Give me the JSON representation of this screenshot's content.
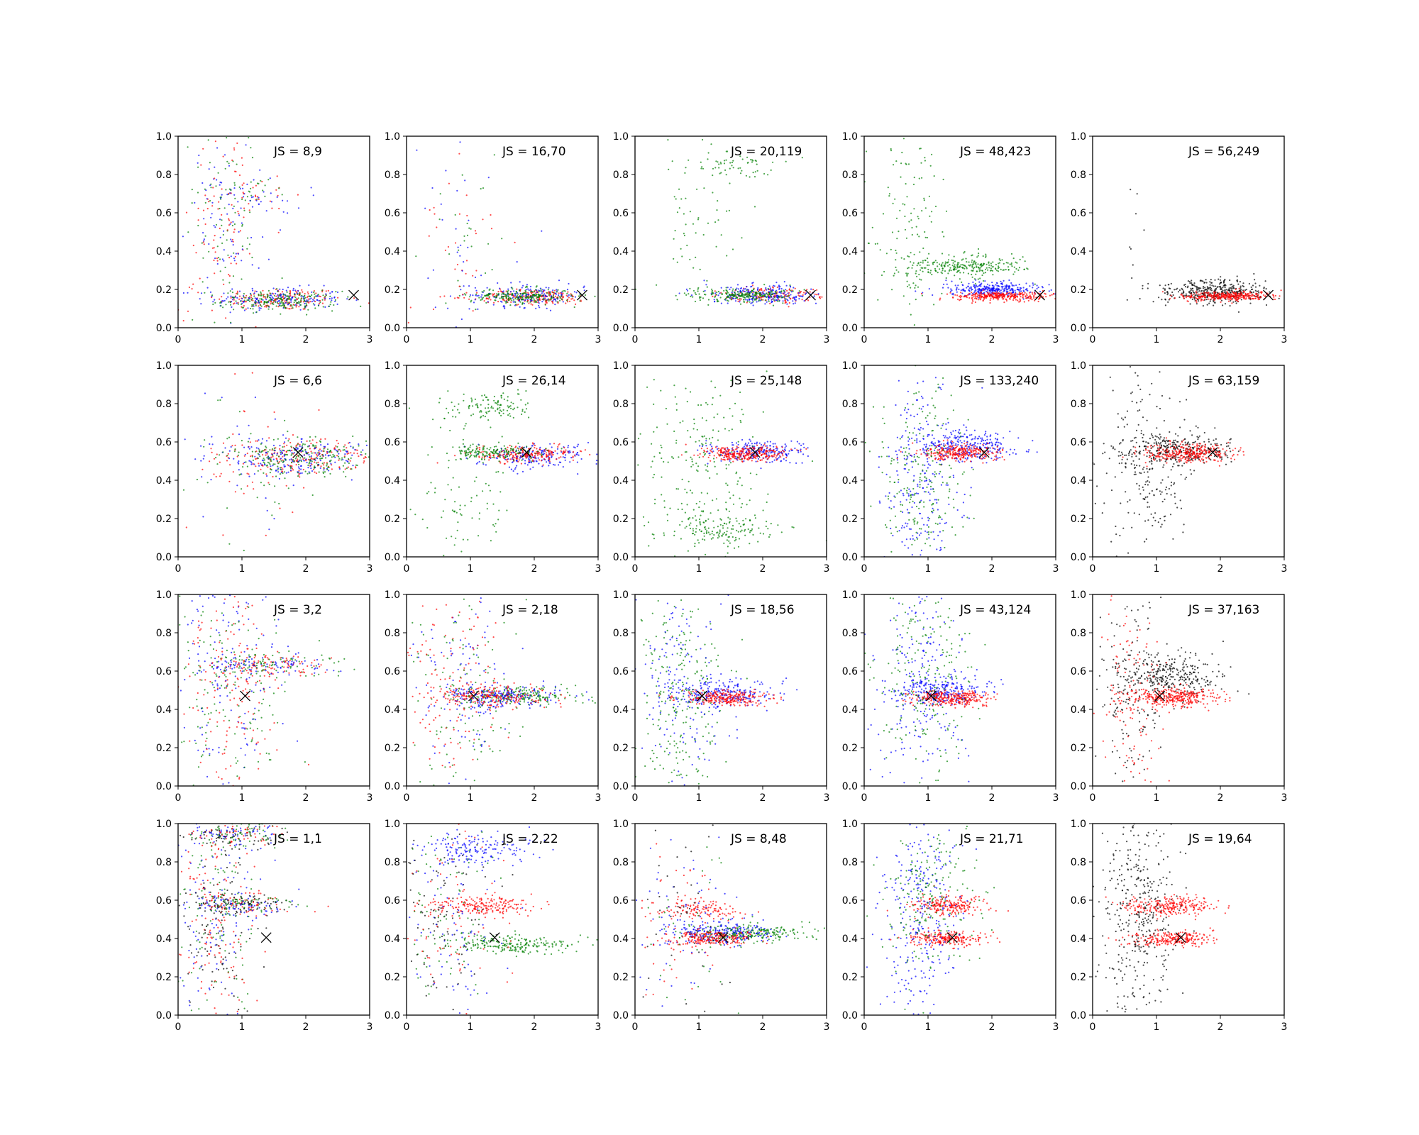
{
  "chart_data": {
    "type": "scatter",
    "layout": {
      "rows": 4,
      "cols": 5
    },
    "xlim": [
      0,
      3
    ],
    "ylim": [
      0,
      1
    ],
    "xticks": [
      "0",
      "1",
      "2",
      "3"
    ],
    "yticks": [
      "0.0",
      "0.2",
      "0.4",
      "0.6",
      "0.8",
      "1.0"
    ],
    "grid": false,
    "legend": "none",
    "colors": {
      "red": "#ff0000",
      "blue": "#0000ff",
      "green": "#008000",
      "black": "#000000"
    },
    "panels": [
      {
        "label": "JS = 8,9",
        "marker": {
          "x": 2.75,
          "y": 0.17
        },
        "colors": [
          "red",
          "blue",
          "green"
        ],
        "clusters": [
          {
            "color": "red",
            "cx": 1.6,
            "cy": 0.15,
            "sx": 0.5,
            "sy": 0.03,
            "n": 170
          },
          {
            "color": "blue",
            "cx": 1.6,
            "cy": 0.15,
            "sx": 0.5,
            "sy": 0.03,
            "n": 170
          },
          {
            "color": "green",
            "cx": 1.6,
            "cy": 0.14,
            "sx": 0.45,
            "sy": 0.025,
            "n": 200
          },
          {
            "color": "mix",
            "cx": 0.7,
            "cy": 0.55,
            "sx": 0.3,
            "sy": 0.28,
            "n": 250
          },
          {
            "color": "mix",
            "cx": 1.2,
            "cy": 0.7,
            "sx": 0.4,
            "sy": 0.05,
            "n": 90
          }
        ]
      },
      {
        "label": "JS = 16,70",
        "marker": {
          "x": 2.75,
          "y": 0.17
        },
        "colors": [
          "red",
          "blue",
          "green"
        ],
        "clusters": [
          {
            "color": "red",
            "cx": 2.0,
            "cy": 0.16,
            "sx": 0.45,
            "sy": 0.02,
            "n": 200
          },
          {
            "color": "blue",
            "cx": 1.9,
            "cy": 0.17,
            "sx": 0.45,
            "sy": 0.03,
            "n": 170
          },
          {
            "color": "green",
            "cx": 1.8,
            "cy": 0.165,
            "sx": 0.4,
            "sy": 0.02,
            "n": 220
          },
          {
            "color": "mix",
            "cx": 0.8,
            "cy": 0.45,
            "sx": 0.35,
            "sy": 0.25,
            "n": 90
          }
        ]
      },
      {
        "label": "JS = 20,119",
        "marker": {
          "x": 2.75,
          "y": 0.17
        },
        "colors": [
          "red",
          "blue",
          "green"
        ],
        "clusters": [
          {
            "color": "red",
            "cx": 2.2,
            "cy": 0.17,
            "sx": 0.4,
            "sy": 0.02,
            "n": 150
          },
          {
            "color": "blue",
            "cx": 2.0,
            "cy": 0.175,
            "sx": 0.45,
            "sy": 0.025,
            "n": 220
          },
          {
            "color": "green",
            "cx": 1.7,
            "cy": 0.17,
            "sx": 0.4,
            "sy": 0.02,
            "n": 220
          },
          {
            "color": "green",
            "cx": 1.6,
            "cy": 0.85,
            "sx": 0.35,
            "sy": 0.03,
            "n": 60
          },
          {
            "color": "green",
            "cx": 0.9,
            "cy": 0.5,
            "sx": 0.35,
            "sy": 0.25,
            "n": 60
          }
        ]
      },
      {
        "label": "JS = 48,423",
        "marker": {
          "x": 2.75,
          "y": 0.17
        },
        "colors": [
          "red",
          "blue",
          "green"
        ],
        "clusters": [
          {
            "color": "green",
            "cx": 1.6,
            "cy": 0.32,
            "sx": 0.45,
            "sy": 0.03,
            "n": 260
          },
          {
            "color": "blue",
            "cx": 2.0,
            "cy": 0.2,
            "sx": 0.35,
            "sy": 0.02,
            "n": 280
          },
          {
            "color": "red",
            "cx": 2.1,
            "cy": 0.165,
            "sx": 0.35,
            "sy": 0.012,
            "n": 300
          },
          {
            "color": "green",
            "cx": 0.7,
            "cy": 0.55,
            "sx": 0.3,
            "sy": 0.3,
            "n": 150
          }
        ]
      },
      {
        "label": "JS = 56,249",
        "marker": {
          "x": 2.75,
          "y": 0.17
        },
        "colors": [
          "black",
          "red"
        ],
        "clusters": [
          {
            "color": "black",
            "cx": 1.9,
            "cy": 0.19,
            "sx": 0.42,
            "sy": 0.03,
            "n": 380
          },
          {
            "color": "red",
            "cx": 2.1,
            "cy": 0.165,
            "sx": 0.35,
            "sy": 0.012,
            "n": 320
          },
          {
            "color": "black",
            "cx": 0.6,
            "cy": 0.6,
            "sx": 0.2,
            "sy": 0.25,
            "n": 8
          }
        ]
      },
      {
        "label": "JS = 6,6",
        "marker": {
          "x": 1.88,
          "y": 0.545
        },
        "colors": [
          "red",
          "blue",
          "green"
        ],
        "clusters": [
          {
            "color": "red",
            "cx": 1.9,
            "cy": 0.52,
            "sx": 0.55,
            "sy": 0.05,
            "n": 200
          },
          {
            "color": "blue",
            "cx": 1.9,
            "cy": 0.52,
            "sx": 0.55,
            "sy": 0.05,
            "n": 200
          },
          {
            "color": "green",
            "cx": 1.9,
            "cy": 0.52,
            "sx": 0.55,
            "sy": 0.05,
            "n": 220
          },
          {
            "color": "mix",
            "cx": 1.1,
            "cy": 0.45,
            "sx": 0.55,
            "sy": 0.22,
            "n": 100
          }
        ]
      },
      {
        "label": "JS = 26,14",
        "marker": {
          "x": 1.88,
          "y": 0.545
        },
        "colors": [
          "red",
          "blue",
          "green"
        ],
        "clusters": [
          {
            "color": "blue",
            "cx": 2.0,
            "cy": 0.53,
            "sx": 0.45,
            "sy": 0.03,
            "n": 200
          },
          {
            "color": "red",
            "cx": 1.9,
            "cy": 0.535,
            "sx": 0.4,
            "sy": 0.02,
            "n": 220
          },
          {
            "color": "green",
            "cx": 1.4,
            "cy": 0.545,
            "sx": 0.35,
            "sy": 0.02,
            "n": 160
          },
          {
            "color": "green",
            "cx": 1.3,
            "cy": 0.78,
            "sx": 0.4,
            "sy": 0.04,
            "n": 120
          },
          {
            "color": "green",
            "cx": 0.9,
            "cy": 0.3,
            "sx": 0.35,
            "sy": 0.2,
            "n": 90
          }
        ]
      },
      {
        "label": "JS = 25,148",
        "marker": {
          "x": 1.88,
          "y": 0.545
        },
        "colors": [
          "red",
          "blue",
          "green"
        ],
        "clusters": [
          {
            "color": "blue",
            "cx": 1.9,
            "cy": 0.55,
            "sx": 0.4,
            "sy": 0.03,
            "n": 220
          },
          {
            "color": "red",
            "cx": 1.7,
            "cy": 0.54,
            "sx": 0.35,
            "sy": 0.02,
            "n": 280
          },
          {
            "color": "green",
            "cx": 1.3,
            "cy": 0.15,
            "sx": 0.45,
            "sy": 0.04,
            "n": 150
          },
          {
            "color": "green",
            "cx": 1.1,
            "cy": 0.5,
            "sx": 0.5,
            "sy": 0.25,
            "n": 220
          }
        ]
      },
      {
        "label": "JS = 133,240",
        "marker": {
          "x": 1.88,
          "y": 0.545
        },
        "colors": [
          "red",
          "blue",
          "green"
        ],
        "clusters": [
          {
            "color": "blue",
            "cx": 1.6,
            "cy": 0.58,
            "sx": 0.35,
            "sy": 0.04,
            "n": 260
          },
          {
            "color": "red",
            "cx": 1.5,
            "cy": 0.545,
            "sx": 0.3,
            "sy": 0.02,
            "n": 280
          },
          {
            "color": "blue",
            "cx": 0.9,
            "cy": 0.4,
            "sx": 0.3,
            "sy": 0.25,
            "n": 250
          },
          {
            "color": "green",
            "cx": 0.9,
            "cy": 0.45,
            "sx": 0.35,
            "sy": 0.28,
            "n": 230
          }
        ]
      },
      {
        "label": "JS = 63,159",
        "marker": {
          "x": 1.88,
          "y": 0.545
        },
        "colors": [
          "black",
          "red"
        ],
        "clusters": [
          {
            "color": "black",
            "cx": 1.3,
            "cy": 0.56,
            "sx": 0.45,
            "sy": 0.04,
            "n": 300
          },
          {
            "color": "red",
            "cx": 1.5,
            "cy": 0.54,
            "sx": 0.35,
            "sy": 0.025,
            "n": 320
          },
          {
            "color": "black",
            "cx": 0.8,
            "cy": 0.45,
            "sx": 0.35,
            "sy": 0.25,
            "n": 220
          }
        ]
      },
      {
        "label": "JS = 3,2",
        "marker": {
          "x": 1.05,
          "y": 0.47
        },
        "colors": [
          "red",
          "blue",
          "green"
        ],
        "clusters": [
          {
            "color": "mix",
            "cx": 1.4,
            "cy": 0.63,
            "sx": 0.55,
            "sy": 0.03,
            "n": 280
          },
          {
            "color": "mix",
            "cx": 0.8,
            "cy": 0.5,
            "sx": 0.45,
            "sy": 0.3,
            "n": 450
          }
        ]
      },
      {
        "label": "JS = 2,18",
        "marker": {
          "x": 1.05,
          "y": 0.47
        },
        "colors": [
          "red",
          "blue",
          "green"
        ],
        "clusters": [
          {
            "color": "green",
            "cx": 1.8,
            "cy": 0.47,
            "sx": 0.45,
            "sy": 0.025,
            "n": 200
          },
          {
            "color": "blue",
            "cx": 1.5,
            "cy": 0.47,
            "sx": 0.45,
            "sy": 0.03,
            "n": 200
          },
          {
            "color": "red",
            "cx": 1.3,
            "cy": 0.47,
            "sx": 0.45,
            "sy": 0.03,
            "n": 200
          },
          {
            "color": "mix",
            "cx": 0.8,
            "cy": 0.5,
            "sx": 0.45,
            "sy": 0.28,
            "n": 360
          }
        ]
      },
      {
        "label": "JS = 18,56",
        "marker": {
          "x": 1.05,
          "y": 0.47
        },
        "colors": [
          "red",
          "blue",
          "green"
        ],
        "clusters": [
          {
            "color": "blue",
            "cx": 1.4,
            "cy": 0.48,
            "sx": 0.4,
            "sy": 0.035,
            "n": 240
          },
          {
            "color": "red",
            "cx": 1.4,
            "cy": 0.46,
            "sx": 0.35,
            "sy": 0.02,
            "n": 260
          },
          {
            "color": "green",
            "cx": 0.7,
            "cy": 0.45,
            "sx": 0.35,
            "sy": 0.28,
            "n": 260
          },
          {
            "color": "blue",
            "cx": 0.7,
            "cy": 0.5,
            "sx": 0.35,
            "sy": 0.28,
            "n": 160
          }
        ]
      },
      {
        "label": "JS = 43,124",
        "marker": {
          "x": 1.05,
          "y": 0.47
        },
        "colors": [
          "red",
          "blue",
          "green"
        ],
        "clusters": [
          {
            "color": "blue",
            "cx": 1.2,
            "cy": 0.5,
            "sx": 0.35,
            "sy": 0.04,
            "n": 240
          },
          {
            "color": "red",
            "cx": 1.4,
            "cy": 0.46,
            "sx": 0.3,
            "sy": 0.02,
            "n": 280
          },
          {
            "color": "blue",
            "cx": 0.9,
            "cy": 0.5,
            "sx": 0.35,
            "sy": 0.28,
            "n": 200
          },
          {
            "color": "green",
            "cx": 0.9,
            "cy": 0.55,
            "sx": 0.4,
            "sy": 0.28,
            "n": 220
          }
        ]
      },
      {
        "label": "JS = 37,163",
        "marker": {
          "x": 1.05,
          "y": 0.47
        },
        "colors": [
          "black",
          "red"
        ],
        "clusters": [
          {
            "color": "black",
            "cx": 1.2,
            "cy": 0.57,
            "sx": 0.4,
            "sy": 0.06,
            "n": 300
          },
          {
            "color": "red",
            "cx": 1.3,
            "cy": 0.46,
            "sx": 0.35,
            "sy": 0.025,
            "n": 340
          },
          {
            "color": "black",
            "cx": 0.6,
            "cy": 0.5,
            "sx": 0.25,
            "sy": 0.28,
            "n": 160
          },
          {
            "color": "red",
            "cx": 0.6,
            "cy": 0.45,
            "sx": 0.25,
            "sy": 0.28,
            "n": 120
          }
        ]
      },
      {
        "label": "JS = 1,1",
        "marker": {
          "x": 1.38,
          "y": 0.405
        },
        "colors": [
          "red",
          "blue",
          "green",
          "black"
        ],
        "clusters": [
          {
            "color": "mix4",
            "cx": 1.0,
            "cy": 0.58,
            "sx": 0.4,
            "sy": 0.03,
            "n": 300
          },
          {
            "color": "mix4",
            "cx": 0.9,
            "cy": 0.95,
            "sx": 0.45,
            "sy": 0.04,
            "n": 250
          },
          {
            "color": "mix4",
            "cx": 0.6,
            "cy": 0.5,
            "sx": 0.3,
            "sy": 0.3,
            "n": 450
          }
        ]
      },
      {
        "label": "JS = 2,22",
        "marker": {
          "x": 1.38,
          "y": 0.405
        },
        "colors": [
          "red",
          "blue",
          "green",
          "black"
        ],
        "clusters": [
          {
            "color": "green",
            "cx": 1.6,
            "cy": 0.37,
            "sx": 0.5,
            "sy": 0.025,
            "n": 220
          },
          {
            "color": "red",
            "cx": 1.2,
            "cy": 0.57,
            "sx": 0.4,
            "sy": 0.025,
            "n": 200
          },
          {
            "color": "blue",
            "cx": 1.1,
            "cy": 0.87,
            "sx": 0.45,
            "sy": 0.04,
            "n": 160
          },
          {
            "color": "mix4",
            "cx": 0.7,
            "cy": 0.5,
            "sx": 0.4,
            "sy": 0.28,
            "n": 350
          }
        ]
      },
      {
        "label": "JS = 8,48",
        "marker": {
          "x": 1.38,
          "y": 0.405
        },
        "colors": [
          "red",
          "blue",
          "green",
          "black"
        ],
        "clusters": [
          {
            "color": "green",
            "cx": 1.8,
            "cy": 0.43,
            "sx": 0.45,
            "sy": 0.025,
            "n": 240
          },
          {
            "color": "blue",
            "cx": 1.3,
            "cy": 0.43,
            "sx": 0.4,
            "sy": 0.03,
            "n": 220
          },
          {
            "color": "red",
            "cx": 1.2,
            "cy": 0.4,
            "sx": 0.35,
            "sy": 0.02,
            "n": 220
          },
          {
            "color": "red",
            "cx": 1.0,
            "cy": 0.55,
            "sx": 0.35,
            "sy": 0.03,
            "n": 120
          },
          {
            "color": "mix4",
            "cx": 0.8,
            "cy": 0.5,
            "sx": 0.4,
            "sy": 0.28,
            "n": 200
          }
        ]
      },
      {
        "label": "JS = 21,71",
        "marker": {
          "x": 1.38,
          "y": 0.405
        },
        "colors": [
          "red",
          "blue",
          "green",
          "black"
        ],
        "clusters": [
          {
            "color": "red",
            "cx": 1.3,
            "cy": 0.57,
            "sx": 0.3,
            "sy": 0.025,
            "n": 220
          },
          {
            "color": "red",
            "cx": 1.3,
            "cy": 0.4,
            "sx": 0.3,
            "sy": 0.02,
            "n": 220
          },
          {
            "color": "blue",
            "cx": 0.9,
            "cy": 0.5,
            "sx": 0.3,
            "sy": 0.28,
            "n": 300
          },
          {
            "color": "green",
            "cx": 1.0,
            "cy": 0.6,
            "sx": 0.45,
            "sy": 0.2,
            "n": 200
          }
        ]
      },
      {
        "label": "JS = 19,64",
        "marker": {
          "x": 1.38,
          "y": 0.405
        },
        "colors": [
          "black",
          "red"
        ],
        "clusters": [
          {
            "color": "red",
            "cx": 1.2,
            "cy": 0.57,
            "sx": 0.35,
            "sy": 0.025,
            "n": 260
          },
          {
            "color": "red",
            "cx": 1.2,
            "cy": 0.4,
            "sx": 0.35,
            "sy": 0.02,
            "n": 240
          },
          {
            "color": "black",
            "cx": 0.7,
            "cy": 0.5,
            "sx": 0.3,
            "sy": 0.28,
            "n": 400
          }
        ]
      }
    ]
  }
}
